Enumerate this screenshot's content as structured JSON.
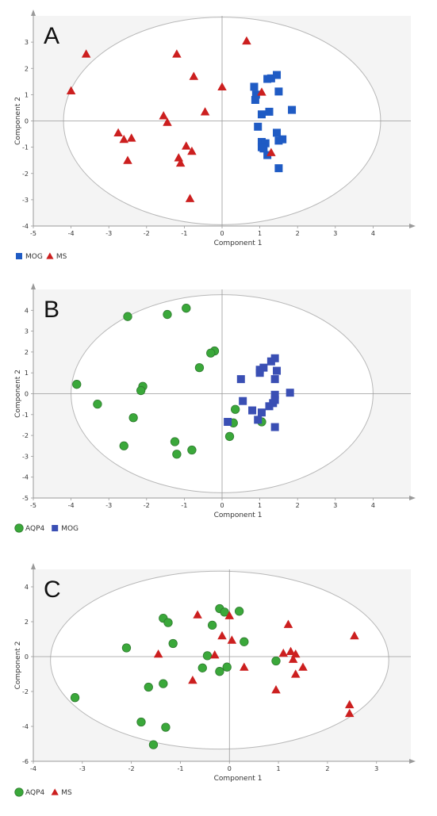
{
  "chart_data": [
    {
      "type": "scatter",
      "panel_label": "A",
      "xlabel": "Component 1",
      "ylabel": "Component 2",
      "xlim": [
        -5,
        5
      ],
      "ylim": [
        -4,
        4
      ],
      "xticks": [
        -5,
        -4,
        -3,
        -2,
        -1,
        0,
        1,
        2,
        3,
        4
      ],
      "yticks": [
        -4,
        -3,
        -2,
        -1,
        0,
        1,
        2,
        3
      ],
      "grid": false,
      "confidence_ellipse": {
        "cx": 0,
        "cy": 0,
        "rx": 4.2,
        "ry": 3.95
      },
      "legend_position": "bottom-left",
      "series": [
        {
          "name": "MOG",
          "marker": "square",
          "color": "#1f5bc4",
          "points": [
            [
              0.85,
              1.3
            ],
            [
              0.9,
              1.0
            ],
            [
              0.88,
              0.8
            ],
            [
              1.2,
              1.6
            ],
            [
              1.3,
              1.62
            ],
            [
              1.45,
              1.75
            ],
            [
              1.5,
              1.12
            ],
            [
              1.05,
              0.25
            ],
            [
              1.25,
              0.35
            ],
            [
              1.85,
              0.42
            ],
            [
              0.95,
              -0.22
            ],
            [
              1.45,
              -0.45
            ],
            [
              1.6,
              -0.7
            ],
            [
              1.5,
              -0.75
            ],
            [
              1.05,
              -0.8
            ],
            [
              1.15,
              -0.85
            ],
            [
              1.05,
              -1.0
            ],
            [
              1.1,
              -1.05
            ],
            [
              1.2,
              -1.3
            ],
            [
              1.5,
              -1.8
            ]
          ]
        },
        {
          "name": "MS",
          "marker": "triangle",
          "color": "#cc1f1f",
          "points": [
            [
              -4.0,
              1.15
            ],
            [
              -3.6,
              2.55
            ],
            [
              -1.2,
              2.55
            ],
            [
              0.65,
              3.05
            ],
            [
              -0.75,
              1.7
            ],
            [
              0.0,
              1.3
            ],
            [
              1.05,
              1.1
            ],
            [
              -0.45,
              0.35
            ],
            [
              -1.55,
              0.2
            ],
            [
              -1.45,
              -0.05
            ],
            [
              -2.75,
              -0.45
            ],
            [
              -2.6,
              -0.7
            ],
            [
              -2.4,
              -0.65
            ],
            [
              -0.95,
              -0.95
            ],
            [
              -0.8,
              -1.15
            ],
            [
              -1.15,
              -1.4
            ],
            [
              -1.1,
              -1.6
            ],
            [
              -2.5,
              -1.5
            ],
            [
              -0.85,
              -2.95
            ],
            [
              1.3,
              -1.2
            ]
          ]
        }
      ]
    },
    {
      "type": "scatter",
      "panel_label": "B",
      "xlabel": "Component 1",
      "ylabel": "Component 2",
      "xlim": [
        -5,
        5
      ],
      "ylim": [
        -5,
        5
      ],
      "xticks": [
        -5,
        -4,
        -3,
        -2,
        -1,
        0,
        1,
        2,
        3,
        4
      ],
      "yticks": [
        -5,
        -4,
        -3,
        -2,
        -1,
        0,
        1,
        2,
        3,
        4
      ],
      "grid": false,
      "confidence_ellipse": {
        "cx": 0,
        "cy": 0,
        "rx": 4.0,
        "ry": 4.75
      },
      "legend_position": "bottom-left",
      "series": [
        {
          "name": "AQP4",
          "marker": "circle",
          "color": "#3aa83a",
          "points": [
            [
              -2.5,
              3.7
            ],
            [
              -1.45,
              3.8
            ],
            [
              -0.95,
              4.1
            ],
            [
              -0.2,
              2.05
            ],
            [
              -0.3,
              1.95
            ],
            [
              -0.6,
              1.25
            ],
            [
              -3.85,
              0.45
            ],
            [
              -2.1,
              0.35
            ],
            [
              -2.15,
              0.15
            ],
            [
              -3.3,
              -0.5
            ],
            [
              -2.35,
              -1.15
            ],
            [
              0.35,
              -0.75
            ],
            [
              0.3,
              -1.4
            ],
            [
              1.05,
              -1.35
            ],
            [
              0.2,
              -2.05
            ],
            [
              -1.25,
              -2.3
            ],
            [
              -0.8,
              -2.7
            ],
            [
              -1.2,
              -2.9
            ],
            [
              -2.6,
              -2.5
            ]
          ]
        },
        {
          "name": "MOG",
          "marker": "square",
          "color": "#3a4fb4",
          "points": [
            [
              1.0,
              1.15
            ],
            [
              1.1,
              1.25
            ],
            [
              1.3,
              1.55
            ],
            [
              1.4,
              1.7
            ],
            [
              1.0,
              1.0
            ],
            [
              1.45,
              1.1
            ],
            [
              1.4,
              0.7
            ],
            [
              0.5,
              0.7
            ],
            [
              1.8,
              0.05
            ],
            [
              1.4,
              -0.05
            ],
            [
              1.4,
              -0.3
            ],
            [
              1.35,
              -0.45
            ],
            [
              1.25,
              -0.6
            ],
            [
              0.55,
              -0.35
            ],
            [
              0.8,
              -0.8
            ],
            [
              1.05,
              -0.9
            ],
            [
              0.95,
              -1.25
            ],
            [
              0.15,
              -1.35
            ],
            [
              1.4,
              -1.6
            ]
          ]
        }
      ]
    },
    {
      "type": "scatter",
      "panel_label": "C",
      "xlabel": "Component 1",
      "ylabel": "Component 2",
      "xlim": [
        -4,
        3.7
      ],
      "ylim": [
        -6,
        5
      ],
      "xticks": [
        -4,
        -3,
        -2,
        -1,
        0,
        1,
        2,
        3
      ],
      "yticks": [
        -6,
        -4,
        -2,
        0,
        2,
        4
      ],
      "grid": false,
      "confidence_ellipse": {
        "cx": -0.2,
        "cy": -0.2,
        "rx": 3.45,
        "ry": 5.1
      },
      "legend_position": "bottom-left",
      "series": [
        {
          "name": "AQP4",
          "marker": "circle",
          "color": "#3aa83a",
          "points": [
            [
              -0.2,
              2.75
            ],
            [
              -0.1,
              2.55
            ],
            [
              0.2,
              2.6
            ],
            [
              -1.35,
              2.2
            ],
            [
              -1.25,
              1.95
            ],
            [
              -0.35,
              1.8
            ],
            [
              0.3,
              0.85
            ],
            [
              -1.15,
              0.75
            ],
            [
              -2.1,
              0.5
            ],
            [
              -0.45,
              0.05
            ],
            [
              -0.55,
              -0.65
            ],
            [
              -0.2,
              -0.85
            ],
            [
              -0.05,
              -0.6
            ],
            [
              0.95,
              -0.25
            ],
            [
              -1.35,
              -1.55
            ],
            [
              -1.65,
              -1.75
            ],
            [
              -3.15,
              -2.35
            ],
            [
              -1.8,
              -3.75
            ],
            [
              -1.3,
              -4.05
            ],
            [
              -1.55,
              -5.05
            ]
          ]
        },
        {
          "name": "MS",
          "marker": "triangle",
          "color": "#cc1f1f",
          "points": [
            [
              -0.65,
              2.4
            ],
            [
              0.0,
              2.35
            ],
            [
              -0.15,
              1.2
            ],
            [
              0.05,
              0.95
            ],
            [
              1.2,
              1.85
            ],
            [
              2.55,
              1.2
            ],
            [
              -1.45,
              0.15
            ],
            [
              -0.3,
              0.1
            ],
            [
              1.1,
              0.2
            ],
            [
              1.25,
              0.3
            ],
            [
              1.35,
              0.15
            ],
            [
              1.3,
              -0.15
            ],
            [
              1.5,
              -0.6
            ],
            [
              0.3,
              -0.6
            ],
            [
              1.35,
              -1.0
            ],
            [
              -0.75,
              -1.35
            ],
            [
              0.95,
              -1.9
            ],
            [
              2.45,
              -2.75
            ],
            [
              2.45,
              -3.25
            ]
          ]
        }
      ]
    }
  ]
}
